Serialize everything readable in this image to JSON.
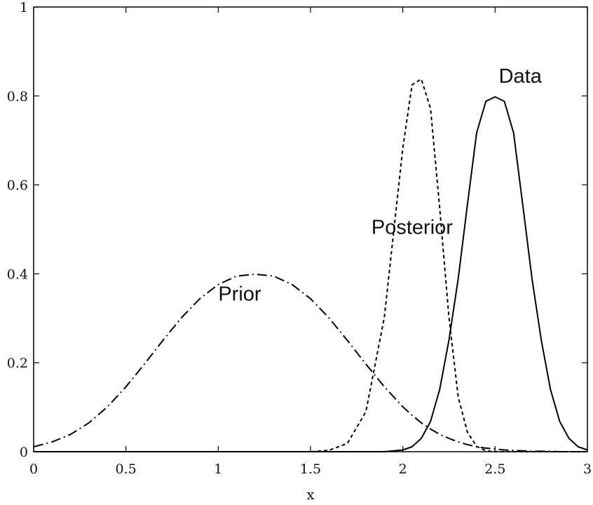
{
  "chart_data": {
    "type": "line",
    "title": "",
    "xlabel": "x",
    "ylabel": "",
    "xlim": [
      0,
      3
    ],
    "ylim": [
      0,
      1
    ],
    "grid": false,
    "x_ticks": [
      0,
      0.5,
      1,
      1.5,
      2,
      2.5,
      3
    ],
    "x_tick_labels": [
      "0",
      "0.5",
      "1",
      "1.5",
      "2",
      "2.5",
      "3"
    ],
    "y_ticks": [
      0,
      0.2,
      0.4,
      0.6,
      0.8,
      1
    ],
    "y_tick_labels": [
      "0",
      "0.2",
      "0.4",
      "0.6",
      "0.8",
      "1"
    ],
    "x": [
      0,
      0.1,
      0.2,
      0.3,
      0.4,
      0.5,
      0.6,
      0.7,
      0.8,
      0.9,
      1.0,
      1.1,
      1.2,
      1.3,
      1.4,
      1.5,
      1.6,
      1.7,
      1.8,
      1.9,
      2.0,
      2.05,
      2.1,
      2.15,
      2.2,
      2.25,
      2.3,
      2.35,
      2.4,
      2.45,
      2.5,
      2.55,
      2.6,
      2.65,
      2.7,
      2.75,
      2.8,
      2.85,
      2.9,
      2.95,
      3.0
    ],
    "series": [
      {
        "name": "Prior",
        "style": "dash-dot",
        "color": "#000000",
        "values": [
          0.011,
          0.022,
          0.039,
          0.065,
          0.101,
          0.146,
          0.197,
          0.25,
          0.301,
          0.344,
          0.376,
          0.395,
          0.399,
          0.395,
          0.376,
          0.344,
          0.301,
          0.25,
          0.197,
          0.146,
          0.101,
          0.082,
          0.065,
          0.051,
          0.039,
          0.03,
          0.022,
          0.016,
          0.011,
          0.008,
          0.006,
          0.004,
          0.003,
          0.002,
          0.001,
          0.001,
          0.001,
          0.0,
          0.0,
          0.0,
          0.0
        ]
      },
      {
        "name": "Posterior",
        "style": "dashed",
        "color": "#000000",
        "values": [
          0.0,
          0.0,
          0.0,
          0.0,
          0.0,
          0.0,
          0.0,
          0.0,
          0.0,
          0.0,
          0.0,
          0.0,
          0.0,
          0.0,
          0.0,
          0.0,
          0.003,
          0.019,
          0.09,
          0.302,
          0.683,
          0.825,
          0.838,
          0.772,
          0.548,
          0.302,
          0.123,
          0.044,
          0.012,
          0.002,
          0.0,
          0.0,
          0.0,
          0.0,
          0.0,
          0.0,
          0.0,
          0.0,
          0.0,
          0.0,
          0.0
        ]
      },
      {
        "name": "Data",
        "style": "solid",
        "color": "#000000",
        "values": [
          0.0,
          0.0,
          0.0,
          0.0,
          0.0,
          0.0,
          0.0,
          0.0,
          0.0,
          0.0,
          0.0,
          0.0,
          0.0,
          0.0,
          0.0,
          0.0,
          0.0,
          0.0,
          0.0,
          0.0,
          0.004,
          0.011,
          0.03,
          0.068,
          0.14,
          0.251,
          0.389,
          0.555,
          0.717,
          0.788,
          0.798,
          0.788,
          0.717,
          0.555,
          0.389,
          0.251,
          0.14,
          0.068,
          0.03,
          0.011,
          0.004
        ]
      }
    ],
    "annotations": [
      {
        "text": "Prior",
        "x": 1.0,
        "y": 0.34
      },
      {
        "text": "Posterior",
        "x": 1.83,
        "y": 0.49
      },
      {
        "text": "Data",
        "x": 2.52,
        "y": 0.83
      }
    ]
  }
}
